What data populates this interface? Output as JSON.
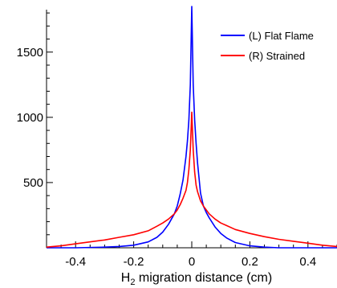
{
  "chart_data": {
    "type": "line",
    "title": "",
    "xlabel": "H",
    "xlabel_subscript": "2",
    "xlabel_rest": " migration distance (cm)",
    "ylabel": "",
    "xlim": [
      -0.5,
      0.5
    ],
    "ylim": [
      0,
      1850
    ],
    "x_ticks": [
      -0.4,
      -0.2,
      0,
      0.2,
      0.4
    ],
    "x_tick_labels": [
      "-0.4",
      "-0.2",
      "0",
      "0.2",
      "0.4"
    ],
    "y_ticks": [
      500,
      1000,
      1500
    ],
    "y_tick_labels": [
      "500",
      "1000",
      "1500"
    ],
    "grid": false,
    "legend_position": "top-right",
    "series": [
      {
        "name": "(L) Flat Flame",
        "color": "#0000ff",
        "x": [
          -0.5,
          -0.4,
          -0.3,
          -0.25,
          -0.2,
          -0.15,
          -0.12,
          -0.1,
          -0.08,
          -0.06,
          -0.05,
          -0.04,
          -0.03,
          -0.02,
          -0.015,
          -0.01,
          -0.005,
          0,
          0.005,
          0.01,
          0.015,
          0.02,
          0.03,
          0.04,
          0.05,
          0.06,
          0.08,
          0.1,
          0.12,
          0.15,
          0.2,
          0.25,
          0.3,
          0.4,
          0.5
        ],
        "y": [
          0,
          0,
          5,
          10,
          20,
          45,
          80,
          120,
          180,
          260,
          320,
          410,
          520,
          700,
          820,
          980,
          1250,
          1850,
          1250,
          980,
          800,
          650,
          420,
          320,
          270,
          230,
          160,
          110,
          75,
          40,
          15,
          5,
          0,
          0,
          0
        ]
      },
      {
        "name": "(R) Strained",
        "color": "#ff0000",
        "x": [
          -0.5,
          -0.45,
          -0.4,
          -0.3,
          -0.25,
          -0.2,
          -0.15,
          -0.12,
          -0.1,
          -0.08,
          -0.06,
          -0.05,
          -0.04,
          -0.03,
          -0.02,
          -0.015,
          -0.01,
          -0.005,
          0,
          0.005,
          0.01,
          0.015,
          0.02,
          0.03,
          0.04,
          0.05,
          0.06,
          0.08,
          0.1,
          0.12,
          0.15,
          0.2,
          0.25,
          0.3,
          0.35,
          0.4,
          0.45,
          0.5
        ],
        "y": [
          5,
          15,
          30,
          60,
          80,
          100,
          130,
          165,
          190,
          220,
          260,
          290,
          330,
          380,
          440,
          500,
          600,
          750,
          1040,
          750,
          580,
          480,
          430,
          360,
          320,
          290,
          260,
          220,
          190,
          170,
          140,
          110,
          85,
          65,
          50,
          35,
          20,
          10
        ]
      }
    ]
  }
}
